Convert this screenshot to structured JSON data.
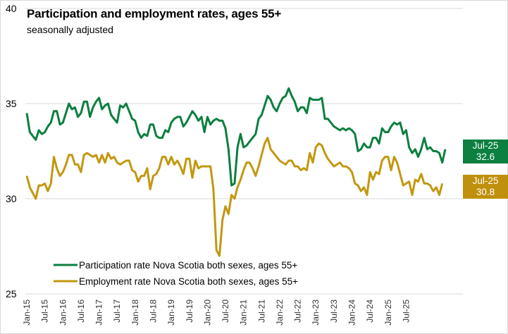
{
  "chart_data": {
    "type": "line",
    "title": "Participation and employment rates, ages 55+",
    "subtitle": "seasonally adjusted",
    "xlabel": "",
    "ylabel": "",
    "ylim": [
      25,
      40
    ],
    "yticks": [
      "25",
      "30",
      "35",
      "40"
    ],
    "grid": true,
    "legend_position": "bottom-left",
    "x_tick_labels": [
      "Jan-15",
      "Jul-15",
      "Jan-16",
      "Jul-16",
      "Jan-17",
      "Jul-17",
      "Jan-18",
      "Jul-18",
      "Jan-19",
      "Jul-19",
      "Jan-20",
      "Jul-20",
      "Jan-21",
      "Jul-21",
      "Jan-22",
      "Jul-22",
      "Jan-23",
      "Jul-23",
      "Jan-24",
      "Jul-24",
      "Jan-25",
      "Jul-25"
    ],
    "x_start": "Jan-15",
    "x_end": "Jul-25",
    "series": [
      {
        "name": "Participation rate Nova Scotia both sexes, ages 55+",
        "color": "#0b7f3f",
        "values": [
          34.5,
          33.5,
          33.3,
          33.1,
          33.6,
          33.4,
          33.5,
          33.8,
          34.0,
          34.6,
          34.6,
          33.9,
          34.0,
          34.5,
          35.0,
          34.7,
          34.8,
          34.3,
          34.5,
          35.1,
          35.1,
          34.3,
          34.8,
          35.1,
          35.3,
          34.7,
          34.9,
          35.0,
          34.4,
          34.2,
          34.0,
          34.9,
          34.8,
          35.0,
          34.6,
          34.2,
          34.1,
          33.5,
          33.2,
          33.4,
          33.3,
          33.9,
          33.9,
          33.3,
          33.2,
          33.2,
          33.6,
          33.5,
          34.0,
          34.2,
          34.3,
          34.3,
          33.8,
          34.0,
          34.3,
          34.6,
          34.4,
          34.1,
          34.3,
          33.5,
          34.3,
          33.9,
          34.1,
          34.2,
          34.1,
          34.1,
          33.7,
          32.6,
          30.7,
          30.8,
          32.7,
          33.4,
          32.7,
          32.8,
          33.0,
          33.2,
          33.4,
          34.2,
          34.4,
          34.9,
          35.4,
          35.2,
          34.8,
          34.6,
          35.0,
          35.3,
          35.4,
          35.8,
          35.4,
          35.1,
          34.6,
          34.8,
          34.8,
          34.5,
          35.3,
          35.2,
          35.2,
          35.2,
          35.3,
          34.2,
          34.2,
          34.0,
          33.8,
          33.7,
          33.6,
          33.7,
          33.6,
          33.7,
          33.6,
          33.4,
          32.5,
          32.6,
          32.9,
          32.7,
          32.7,
          33.2,
          33.2,
          32.9,
          33.7,
          33.5,
          33.5,
          33.8,
          34.0,
          33.9,
          34.0,
          33.4,
          33.6,
          32.7,
          32.4,
          32.6,
          32.2,
          32.6,
          33.2,
          32.6,
          32.7,
          32.5,
          32.5,
          32.4,
          31.9,
          32.6
        ]
      },
      {
        "name": "Employment rate Nova Scotia both sexes, ages 55+",
        "color": "#c29810",
        "values": [
          31.2,
          30.6,
          30.3,
          30.0,
          30.7,
          30.7,
          30.8,
          30.4,
          30.8,
          32.2,
          31.6,
          31.2,
          31.4,
          31.8,
          32.3,
          32.3,
          31.8,
          31.8,
          31.4,
          32.3,
          32.4,
          32.3,
          32.2,
          32.3,
          31.9,
          32.3,
          31.9,
          32.4,
          32.1,
          32.2,
          31.9,
          31.8,
          31.9,
          32.0,
          32.0,
          31.5,
          31.4,
          30.9,
          31.2,
          31.2,
          31.6,
          30.5,
          31.2,
          31.3,
          31.6,
          32.2,
          32.2,
          31.8,
          32.2,
          31.8,
          32.0,
          31.7,
          31.3,
          32.1,
          32.1,
          31.1,
          32.0,
          31.6,
          31.7,
          31.7,
          31.7,
          31.7,
          30.5,
          27.3,
          27.0,
          28.9,
          29.6,
          29.2,
          30.2,
          30.0,
          30.6,
          31.0,
          31.5,
          31.9,
          31.9,
          31.6,
          31.2,
          31.7,
          32.3,
          32.9,
          33.2,
          32.6,
          32.4,
          32.2,
          32.0,
          31.9,
          31.8,
          32.0,
          32.0,
          31.7,
          31.7,
          31.5,
          31.6,
          31.5,
          32.4,
          31.9,
          32.7,
          32.9,
          32.8,
          32.4,
          32.1,
          31.9,
          31.7,
          31.8,
          31.9,
          31.7,
          31.7,
          31.6,
          31.4,
          30.8,
          30.7,
          30.4,
          30.6,
          30.2,
          31.4,
          31.0,
          31.4,
          31.3,
          32.0,
          32.2,
          32.2,
          31.5,
          32.2,
          31.9,
          31.3,
          30.7,
          30.8,
          30.9,
          30.2,
          31.0,
          30.9,
          31.3,
          30.8,
          30.8,
          30.7,
          30.4,
          30.6,
          30.2,
          30.8
        ]
      }
    ],
    "end_labels": [
      {
        "period": "Jul-25",
        "value": "32.6",
        "color": "#0b8040"
      },
      {
        "period": "Jul-25",
        "value": "30.8",
        "color": "#bf900d"
      }
    ]
  }
}
